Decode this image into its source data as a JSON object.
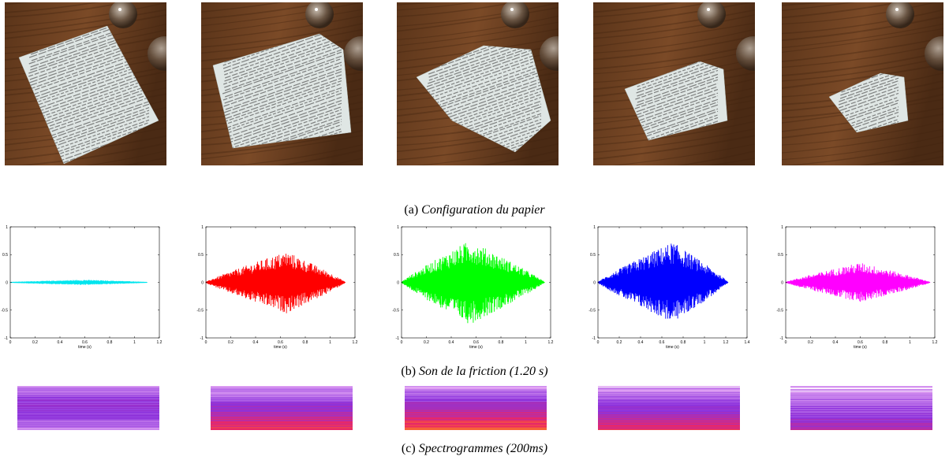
{
  "captions": {
    "a_prefix": "(a) ",
    "a_text": "Configuration du papier",
    "b_prefix": "(b) ",
    "b_text": "Son de la friction (1.20 s)",
    "c_prefix": "(c) ",
    "c_text": "Spectrogrammes (200ms)"
  },
  "photos": [
    {
      "name": "photo-flat-paper"
    },
    {
      "name": "photo-curled-paper"
    },
    {
      "name": "photo-arched-paper"
    },
    {
      "name": "photo-rolled-paper"
    },
    {
      "name": "photo-folded-paper"
    }
  ],
  "chart_data": [
    {
      "type": "line",
      "color": "#00e5ee",
      "xlabel": "time (s)",
      "xlim": [
        0,
        1.2
      ],
      "ylim": [
        -1,
        1
      ],
      "xticks": [
        "0",
        "0.2",
        "0.4",
        "0.6",
        "0.8",
        "1",
        "1.2"
      ],
      "yticks": [
        "1",
        "0.5",
        "0",
        "-0.5",
        "-1"
      ],
      "duration": 1.1,
      "peak_time": 0.6,
      "amplitude": 0.04
    },
    {
      "type": "line",
      "color": "#ff0000",
      "xlabel": "time (s)",
      "xlim": [
        0,
        1.2
      ],
      "ylim": [
        -1,
        1
      ],
      "xticks": [
        "0",
        "0.2",
        "0.4",
        "0.6",
        "0.8",
        "1",
        "1.2"
      ],
      "yticks": [
        "1",
        "0.5",
        "0",
        "-0.5",
        "-1"
      ],
      "duration": 1.12,
      "peak_time": 0.65,
      "amplitude": 0.55
    },
    {
      "type": "line",
      "color": "#00ff00",
      "xlabel": "time (s)",
      "xlim": [
        0,
        1.2
      ],
      "ylim": [
        -1,
        1
      ],
      "xticks": [
        "0",
        "0.2",
        "0.4",
        "0.6",
        "0.8",
        "1",
        "1.2"
      ],
      "yticks": [
        "1",
        "0.5",
        "0",
        "-0.5",
        "-1"
      ],
      "duration": 1.15,
      "peak_time": 0.55,
      "amplitude": 0.75
    },
    {
      "type": "line",
      "color": "#0000ff",
      "xlabel": "time (s)",
      "xlim": [
        0,
        1.4
      ],
      "ylim": [
        -1,
        1
      ],
      "xticks": [
        "0",
        "0.2",
        "0.4",
        "0.6",
        "0.8",
        "1",
        "1.2",
        "1.4"
      ],
      "yticks": [
        "1",
        "0.5",
        "0",
        "-0.5",
        "-1"
      ],
      "duration": 1.22,
      "peak_time": 0.7,
      "amplitude": 0.72
    },
    {
      "type": "line",
      "color": "#ff00ff",
      "xlabel": "time (s)",
      "xlim": [
        0,
        1.2
      ],
      "ylim": [
        -1,
        1
      ],
      "xticks": [
        "0",
        "0.2",
        "0.4",
        "0.6",
        "0.8",
        "1",
        "1.2"
      ],
      "yticks": [
        "1",
        "0.5",
        "0",
        "-0.5",
        "-1"
      ],
      "duration": 1.16,
      "peak_time": 0.6,
      "amplitude": 0.35
    }
  ],
  "spectrograms": [
    {
      "name": "spectrogram-1",
      "intensity": 0.35
    },
    {
      "name": "spectrogram-2",
      "intensity": 0.8
    },
    {
      "name": "spectrogram-3",
      "intensity": 0.9
    },
    {
      "name": "spectrogram-4",
      "intensity": 0.75
    },
    {
      "name": "spectrogram-5",
      "intensity": 0.6
    }
  ]
}
